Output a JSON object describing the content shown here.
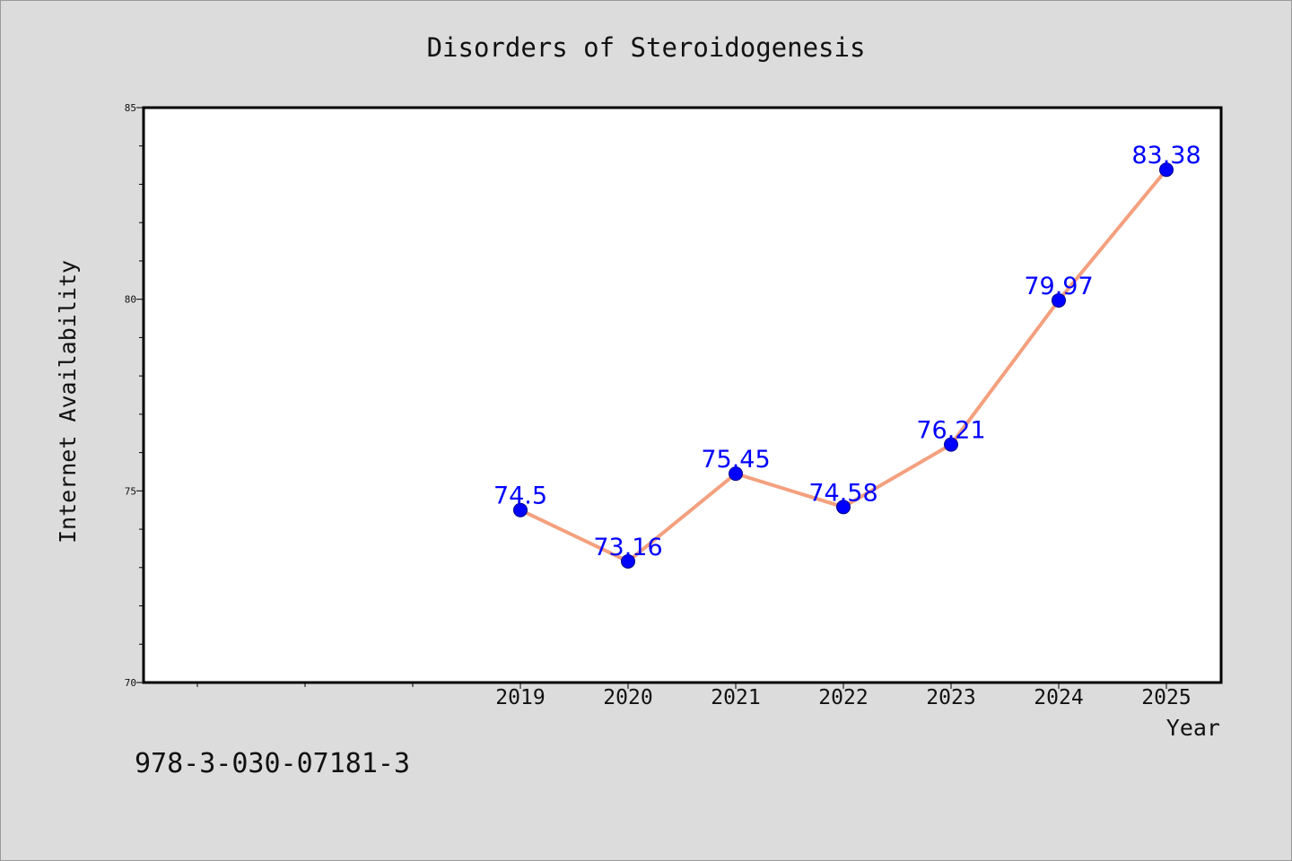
{
  "chart_data": {
    "type": "line",
    "title": "Disorders of Steroidogenesis",
    "xlabel": "Year",
    "ylabel": "Internet Availability",
    "categories": [
      "2019",
      "2020",
      "2021",
      "2022",
      "2023",
      "2024",
      "2025"
    ],
    "series": [
      {
        "values": [
          74.5,
          73.16,
          75.45,
          74.58,
          76.21,
          79.97,
          83.38
        ],
        "labels": [
          "74.5",
          "73.16",
          "75.45",
          "74.58",
          "76.21",
          "79.97",
          "83.38"
        ]
      }
    ],
    "ylim": [
      70,
      85
    ],
    "yticks": [
      70,
      75,
      80,
      85
    ],
    "grid": false,
    "colors": {
      "line": "#f4a07e",
      "marker": "#0000ff",
      "data_label": "#0000ff",
      "background": "#dcdcdc",
      "plot_area": "#ffffff"
    }
  },
  "footer": {
    "isbn": "978-3-030-07181-3"
  }
}
